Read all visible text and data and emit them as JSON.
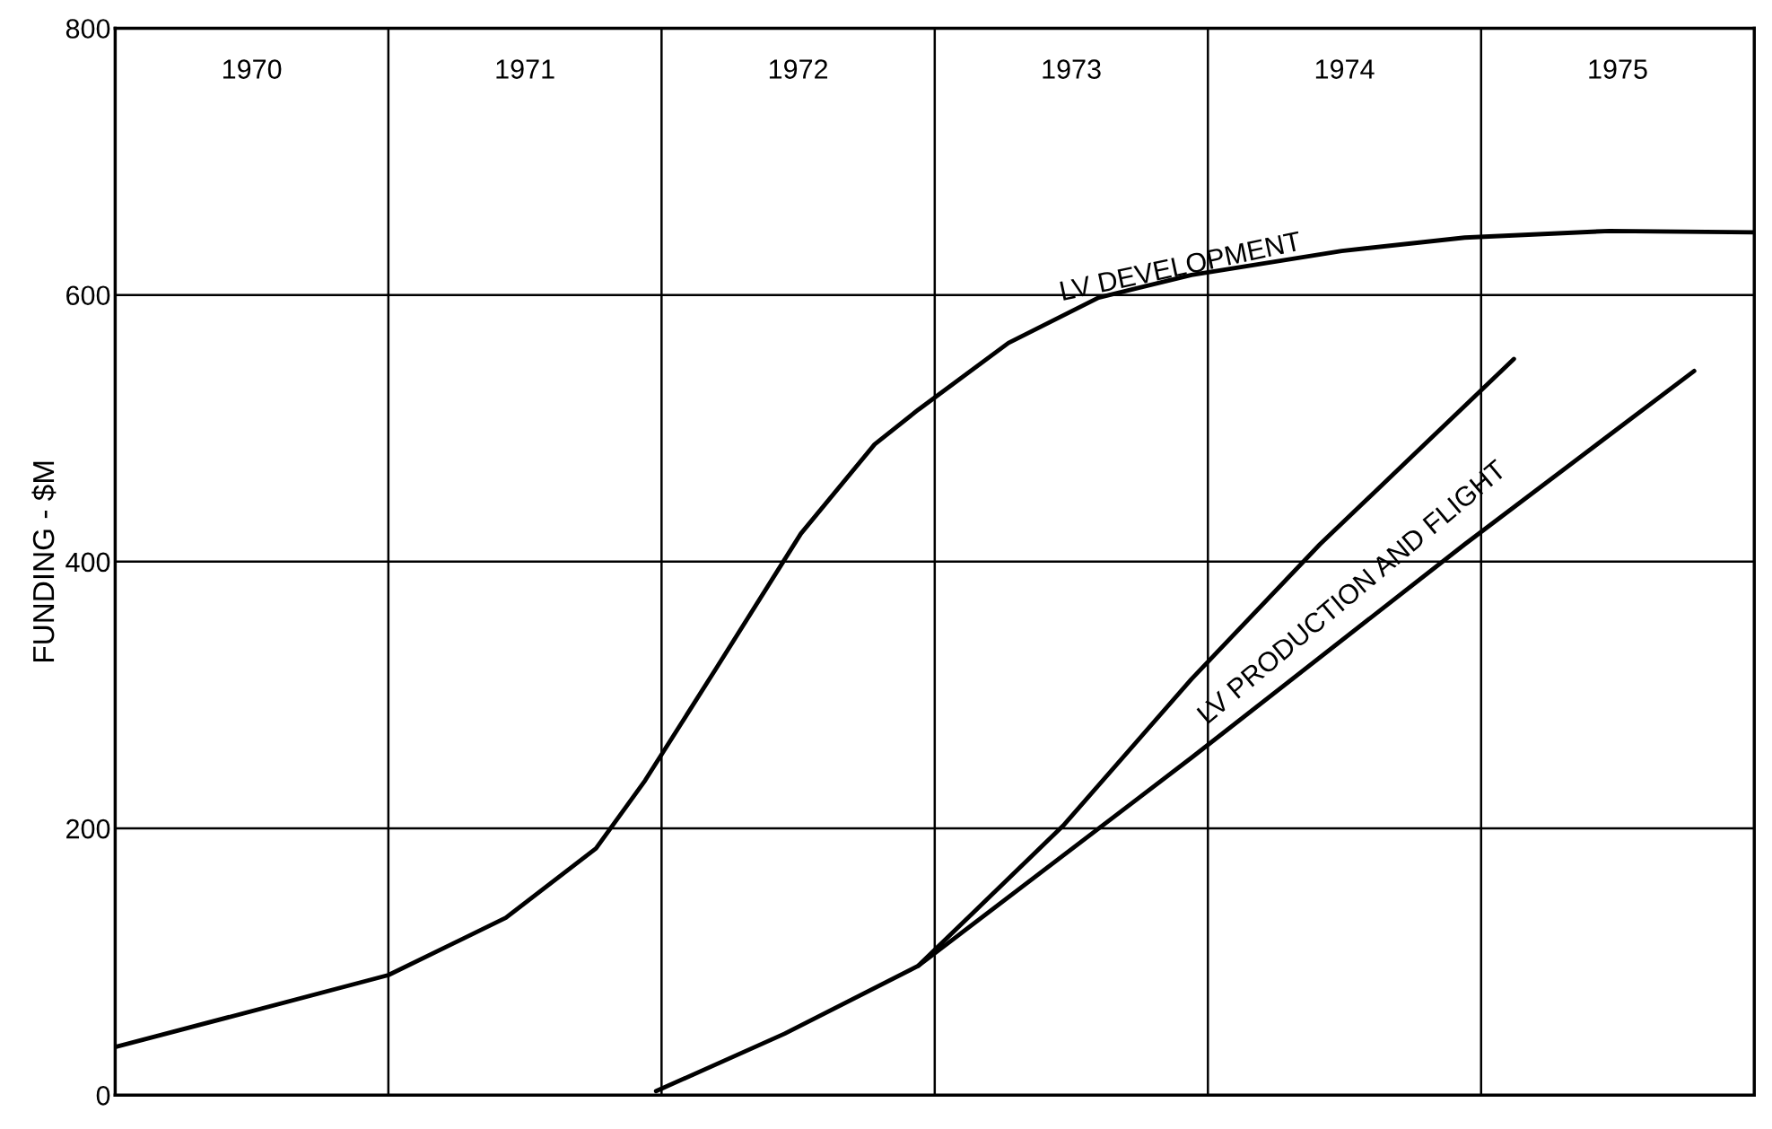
{
  "chart_data": {
    "type": "line",
    "ylabel": "FUNDING - $M",
    "xlim": [
      1970,
      1976
    ],
    "ylim": [
      0,
      800
    ],
    "xticks": [
      {
        "value": 1970.5,
        "label": "1970"
      },
      {
        "value": 1971.5,
        "label": "1971"
      },
      {
        "value": 1972.5,
        "label": "1972"
      },
      {
        "value": 1973.5,
        "label": "1973"
      },
      {
        "value": 1974.5,
        "label": "1974"
      },
      {
        "value": 1975.5,
        "label": "1975"
      }
    ],
    "yticks": [
      0,
      200,
      400,
      600,
      800
    ],
    "grid": "y",
    "marker": "none",
    "line_style": "solid",
    "ref_lines": [
      {
        "axis": "x",
        "value": 1971,
        "color": "#000000"
      },
      {
        "axis": "x",
        "value": 1972,
        "color": "#000000"
      },
      {
        "axis": "x",
        "value": 1973,
        "color": "#000000"
      },
      {
        "axis": "x",
        "value": 1974,
        "color": "#000000"
      },
      {
        "axis": "x",
        "value": 1975,
        "color": "#000000"
      }
    ],
    "series": [
      {
        "color": "#000000",
        "x": [
          1970,
          1971.0,
          1971.43,
          1971.76,
          1971.94,
          1972.2,
          1972.51,
          1972.78,
          1972.94,
          1973.27,
          1973.6,
          1973.94,
          1974.49,
          1974.94,
          1975.47,
          1976
        ],
        "values": [
          36,
          90,
          133,
          185,
          236,
          320,
          421,
          488,
          514,
          564,
          598,
          615,
          633,
          643,
          648,
          647
        ]
      },
      {
        "color": "#000000",
        "x": [
          1971.98,
          1972.45,
          1972.94,
          1973.47,
          1973.94,
          1974.41,
          1975.12
        ],
        "values": [
          3,
          46,
          97,
          202,
          312,
          413,
          552
        ]
      },
      {
        "color": "#000000",
        "x": [
          1972.94,
          1973.94,
          1974.94,
          1975.78
        ],
        "values": [
          97,
          253,
          413,
          543
        ]
      }
    ],
    "annotations": [
      "LV DEVELOPMENT",
      "LV PRODUCTION AND FLIGHT"
    ]
  }
}
